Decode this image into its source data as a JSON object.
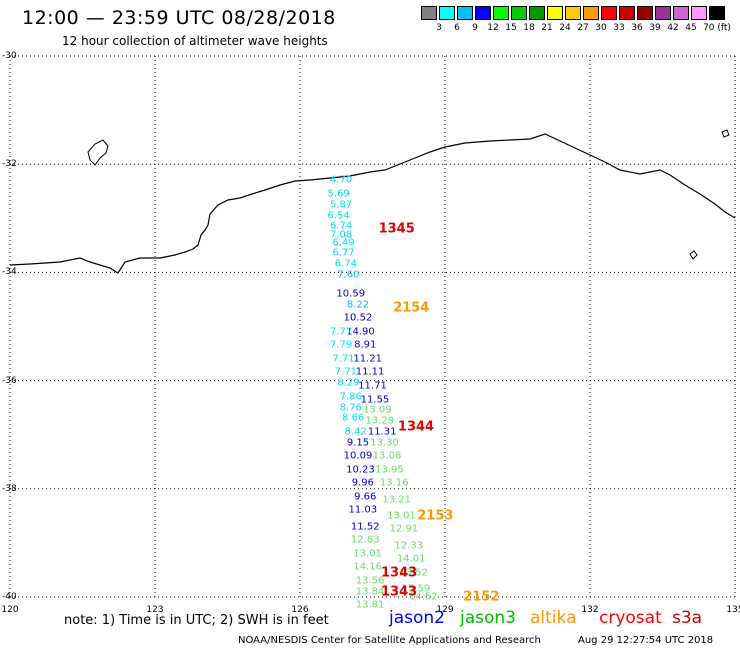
{
  "header": {
    "title": "12:00 — 23:59 UTC 08/28/2018",
    "subtitle": "12 hour collection of altimeter wave heights"
  },
  "colorbar": {
    "colors": [
      "#808080",
      "#00ffff",
      "#00bfff",
      "#0000ff",
      "#00ff00",
      "#00cc00",
      "#009900",
      "#ffff00",
      "#ffcc00",
      "#ff9900",
      "#ff0000",
      "#cc0000",
      "#990000",
      "#993399",
      "#cc66cc",
      "#ff99ff",
      "#000000"
    ],
    "labels": [
      "3",
      "6",
      "9",
      "12",
      "15",
      "18",
      "21",
      "24",
      "27",
      "30",
      "33",
      "36",
      "39",
      "42",
      "45",
      "70 (ft)"
    ]
  },
  "axes": {
    "lat_ticks": [
      "-30",
      "-32",
      "-34",
      "-36",
      "-38",
      "-40"
    ],
    "lon_ticks": [
      "120",
      "123",
      "126",
      "129",
      "132",
      "135"
    ]
  },
  "satellites": {
    "jason2": {
      "label": "jason2",
      "color": "#0000ff"
    },
    "jason3": {
      "label": "jason3",
      "color": "#00bb00"
    },
    "altika": {
      "label": "altika",
      "color": "#ff9900"
    },
    "cryosat": {
      "label": "cryosat",
      "color": "#ff0000"
    },
    "s3a": {
      "label": "s3a",
      "color": "#cc0000"
    }
  },
  "time_labels": [
    {
      "text": "1345",
      "lat": -33.2,
      "lon": 128.0,
      "color": "#dd0000"
    },
    {
      "text": "2154",
      "lat": -34.65,
      "lon": 128.3,
      "color": "#ff9900"
    },
    {
      "text": "1344",
      "lat": -36.85,
      "lon": 128.4,
      "color": "#dd0000"
    },
    {
      "text": "2153",
      "lat": -38.5,
      "lon": 128.8,
      "color": "#ff9900"
    },
    {
      "text": "1343",
      "lat": -39.55,
      "lon": 128.05,
      "color": "#dd0000"
    },
    {
      "text": "1343",
      "lat": -39.9,
      "lon": 128.05,
      "color": "#dd0000"
    },
    {
      "text": "2152",
      "lat": -40.0,
      "lon": 129.75,
      "color": "#ff9900"
    }
  ],
  "observations": [
    {
      "v": "4.70",
      "lat": -32.3,
      "lon": 126.85,
      "c": "#00ddff"
    },
    {
      "v": "5.69",
      "lat": -32.55,
      "lon": 126.8,
      "c": "#00ddff"
    },
    {
      "v": "5.87",
      "lat": -32.75,
      "lon": 126.85,
      "c": "#00ddff"
    },
    {
      "v": "6.54",
      "lat": -32.95,
      "lon": 126.8,
      "c": "#00ddff"
    },
    {
      "v": "6.74",
      "lat": -33.15,
      "lon": 126.85,
      "c": "#00ddff"
    },
    {
      "v": "7.08",
      "lat": -33.3,
      "lon": 126.85,
      "c": "#00ddff"
    },
    {
      "v": "6.49",
      "lat": -33.45,
      "lon": 126.9,
      "c": "#00ddff"
    },
    {
      "v": "6.77",
      "lat": -33.65,
      "lon": 126.9,
      "c": "#00ddff"
    },
    {
      "v": "6.74",
      "lat": -33.85,
      "lon": 126.95,
      "c": "#00ddff"
    },
    {
      "v": "7.60",
      "lat": -34.05,
      "lon": 127.0,
      "c": "#00bfff"
    },
    {
      "v": "10.59",
      "lat": -34.4,
      "lon": 127.05,
      "c": "#0000dd"
    },
    {
      "v": "8.22",
      "lat": -34.6,
      "lon": 127.2,
      "c": "#00bfff"
    },
    {
      "v": "10.52",
      "lat": -34.85,
      "lon": 127.2,
      "c": "#0000dd"
    },
    {
      "v": "14.90",
      "lat": -35.1,
      "lon": 127.25,
      "c": "#0000dd"
    },
    {
      "v": "8.91",
      "lat": -35.35,
      "lon": 127.35,
      "c": "#0000dd"
    },
    {
      "v": "11.21",
      "lat": -35.6,
      "lon": 127.4,
      "c": "#0000dd"
    },
    {
      "v": "11.11",
      "lat": -35.85,
      "lon": 127.45,
      "c": "#0000dd"
    },
    {
      "v": "11.71",
      "lat": -36.1,
      "lon": 127.5,
      "c": "#0000dd"
    },
    {
      "v": "11.55",
      "lat": -36.35,
      "lon": 127.55,
      "c": "#0000dd"
    },
    {
      "v": "13.09",
      "lat": -36.55,
      "lon": 127.6,
      "c": "#66dd66"
    },
    {
      "v": "13.29",
      "lat": -36.75,
      "lon": 127.65,
      "c": "#66dd66"
    },
    {
      "v": "11.31",
      "lat": -36.95,
      "lon": 127.7,
      "c": "#0000dd"
    },
    {
      "v": "13.30",
      "lat": -37.15,
      "lon": 127.75,
      "c": "#66dd66"
    },
    {
      "v": "13.08",
      "lat": -37.4,
      "lon": 127.8,
      "c": "#66dd66"
    },
    {
      "v": "13.95",
      "lat": -37.65,
      "lon": 127.85,
      "c": "#66dd66"
    },
    {
      "v": "13.16",
      "lat": -37.9,
      "lon": 127.95,
      "c": "#66dd66"
    },
    {
      "v": "13.21",
      "lat": -38.2,
      "lon": 128.0,
      "c": "#66dd66"
    },
    {
      "v": "13.01",
      "lat": -38.5,
      "lon": 128.1,
      "c": "#66dd66"
    },
    {
      "v": "12.91",
      "lat": -38.75,
      "lon": 128.15,
      "c": "#66dd66"
    },
    {
      "v": "12.33",
      "lat": -39.05,
      "lon": 128.25,
      "c": "#66dd66"
    },
    {
      "v": "14.01",
      "lat": -39.3,
      "lon": 128.3,
      "c": "#66dd66"
    },
    {
      "v": "13.52",
      "lat": -39.55,
      "lon": 128.35,
      "c": "#66dd66"
    },
    {
      "v": "15.59",
      "lat": -39.85,
      "lon": 128.4,
      "c": "#66dd66"
    },
    {
      "v": "14.52",
      "lat": -40.0,
      "lon": 128.55,
      "c": "#66dd66"
    },
    {
      "v": "7.77",
      "lat": -35.1,
      "lon": 126.85,
      "c": "#00ddff"
    },
    {
      "v": "7.79",
      "lat": -35.35,
      "lon": 126.85,
      "c": "#00ddff"
    },
    {
      "v": "7.71",
      "lat": -35.6,
      "lon": 126.9,
      "c": "#00ddff"
    },
    {
      "v": "7.71",
      "lat": -35.85,
      "lon": 126.95,
      "c": "#00ddff"
    },
    {
      "v": "8.29",
      "lat": -36.05,
      "lon": 127.0,
      "c": "#00ddff"
    },
    {
      "v": "7.86",
      "lat": -36.3,
      "lon": 127.05,
      "c": "#00ddff"
    },
    {
      "v": "8.76",
      "lat": -36.5,
      "lon": 127.05,
      "c": "#00ddff"
    },
    {
      "v": "8.66",
      "lat": -36.7,
      "lon": 127.1,
      "c": "#00ddff"
    },
    {
      "v": "8.42",
      "lat": -36.95,
      "lon": 127.15,
      "c": "#00ddff"
    },
    {
      "v": "9.15",
      "lat": -37.15,
      "lon": 127.2,
      "c": "#0000dd"
    },
    {
      "v": "10.09",
      "lat": -37.4,
      "lon": 127.2,
      "c": "#0000dd"
    },
    {
      "v": "10.23",
      "lat": -37.65,
      "lon": 127.25,
      "c": "#0000dd"
    },
    {
      "v": "9.96",
      "lat": -37.9,
      "lon": 127.3,
      "c": "#0000dd"
    },
    {
      "v": "9.66",
      "lat": -38.15,
      "lon": 127.35,
      "c": "#0000dd"
    },
    {
      "v": "11.03",
      "lat": -38.4,
      "lon": 127.3,
      "c": "#0000dd"
    },
    {
      "v": "11.52",
      "lat": -38.7,
      "lon": 127.35,
      "c": "#0000dd"
    },
    {
      "v": "12.83",
      "lat": -38.95,
      "lon": 127.35,
      "c": "#66dd66"
    },
    {
      "v": "13.01",
      "lat": -39.2,
      "lon": 127.4,
      "c": "#66dd66"
    },
    {
      "v": "14.16",
      "lat": -39.45,
      "lon": 127.4,
      "c": "#66dd66"
    },
    {
      "v": "13.56",
      "lat": -39.7,
      "lon": 127.45,
      "c": "#66dd66"
    },
    {
      "v": "13.84",
      "lat": -39.9,
      "lon": 127.45,
      "c": "#66dd66"
    },
    {
      "v": "13.81",
      "lat": -40.15,
      "lon": 127.45,
      "c": "#66dd66"
    }
  ],
  "footer": {
    "note": "note: 1) Time is in UTC; 2) SWH is in feet",
    "credit": "NOAA/NESDIS Center for Satellite Applications and Research",
    "timestamp": "Aug 29 12:27:54 UTC 2018"
  }
}
